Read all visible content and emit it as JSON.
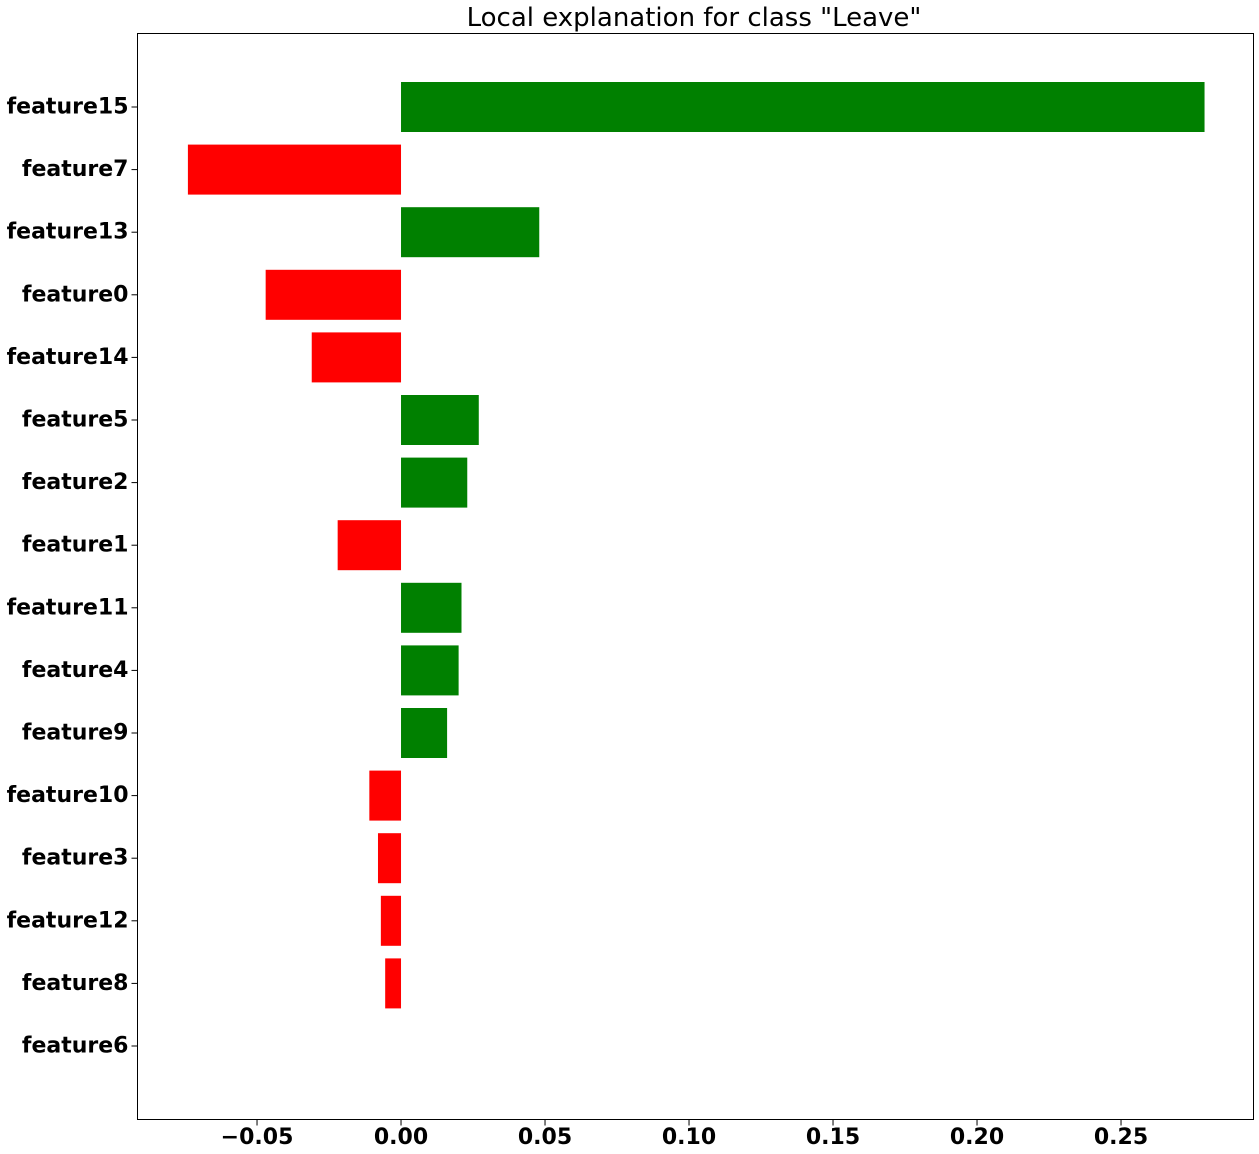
{
  "chart_data": {
    "type": "bar",
    "orientation": "horizontal",
    "title": "Local explanation for class \"Leave\"",
    "xlabel": "",
    "ylabel": "",
    "categories": [
      "feature15",
      "feature7",
      "feature13",
      "feature0",
      "feature14",
      "feature5",
      "feature2",
      "feature1",
      "feature11",
      "feature4",
      "feature9",
      "feature10",
      "feature3",
      "feature12",
      "feature8",
      "feature6"
    ],
    "values": [
      0.279,
      -0.074,
      0.048,
      -0.047,
      -0.031,
      0.027,
      0.023,
      -0.022,
      0.021,
      0.02,
      0.016,
      -0.011,
      -0.008,
      -0.007,
      -0.0055,
      0.0
    ],
    "xlim": [
      -0.0915,
      0.296
    ],
    "xticks": [
      -0.05,
      0.0,
      0.05,
      0.1,
      0.15,
      0.2,
      0.25
    ],
    "xtick_labels": [
      "−0.05",
      "0.00",
      "0.05",
      "0.10",
      "0.15",
      "0.20",
      "0.25"
    ],
    "grid": false,
    "colors": {
      "positive": "#008000",
      "negative": "#ff0000"
    }
  }
}
